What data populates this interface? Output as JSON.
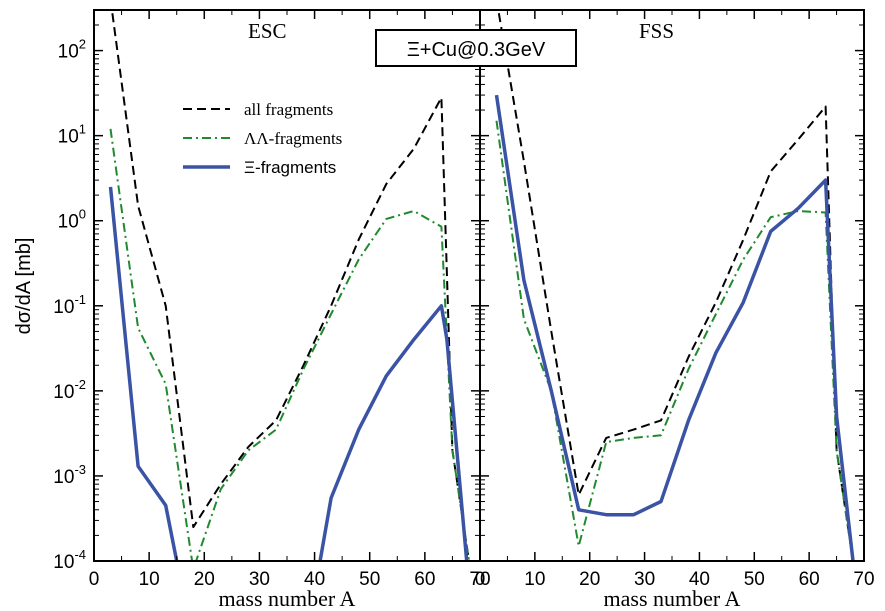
{
  "chart_data": {
    "type": "line",
    "ylabel": "dσ/dA [mb]",
    "ylog": true,
    "ylim": [
      0.0001,
      300
    ],
    "yticks": [
      {
        "value": 100,
        "base": "10",
        "exp": "2"
      },
      {
        "value": 10,
        "base": "10",
        "exp": "1"
      },
      {
        "value": 1,
        "base": "10",
        "exp": "0"
      },
      {
        "value": 0.1,
        "base": "10",
        "exp": "-1"
      },
      {
        "value": 0.01,
        "base": "10",
        "exp": "-2"
      },
      {
        "value": 0.001,
        "base": "10",
        "exp": "-3"
      },
      {
        "value": 0.0001,
        "base": "10",
        "exp": "-4"
      }
    ],
    "annotation": "Ξ+Cu@0.3GeV",
    "legend": {
      "placement": "top-left of left panel",
      "entries": [
        {
          "label": "all fragments",
          "style": "dashed",
          "color": "#000000"
        },
        {
          "label": "ΛΛ-fragments",
          "style": "dashdot",
          "color": "#1f8a2e"
        },
        {
          "label": "Ξ-fragments",
          "style": "solid",
          "color": "#3a53a4"
        }
      ]
    },
    "panels": [
      {
        "title": "ESC",
        "xlabel": "mass number A",
        "xlim": [
          0,
          70
        ],
        "xticks": [
          "0",
          "10",
          "20",
          "30",
          "40",
          "50",
          "60",
          "70"
        ],
        "series": [
          {
            "name": "all fragments",
            "x": [
              3,
              8,
              13,
              18,
              23,
              28,
              33,
              38,
              43,
              48,
              53,
              58,
              63,
              65,
              68
            ],
            "y": [
              400,
              1.5,
              0.1,
              0.00025,
              0.0008,
              0.0022,
              0.0045,
              0.02,
              0.1,
              0.6,
              2.7,
              7,
              28,
              0.002,
              0.0001
            ]
          },
          {
            "name": "ΛΛ-fragments",
            "x": [
              3,
              8,
              13,
              18,
              23,
              28,
              33,
              38,
              43,
              48,
              53,
              58,
              63,
              65,
              68
            ],
            "y": [
              12,
              0.055,
              0.012,
              8e-05,
              0.0007,
              0.002,
              0.0035,
              0.018,
              0.08,
              0.35,
              1.05,
              1.3,
              0.85,
              0.002,
              0.0001
            ]
          },
          {
            "name": "Ξ-fragments",
            "x": [
              3,
              8,
              13,
              15,
              18,
              38,
              41,
              43,
              48,
              53,
              58,
              63,
              64,
              68
            ],
            "y": [
              2.5,
              0.0013,
              0.00045,
              0.0001,
              2e-05,
              2e-05,
              0.0001,
              0.00055,
              0.0035,
              0.015,
              0.04,
              0.1,
              0.04,
              5e-05
            ]
          }
        ]
      },
      {
        "title": "FSS",
        "xlabel": "mass number A",
        "xlim": [
          0,
          70
        ],
        "xticks": [
          "0",
          "10",
          "20",
          "30",
          "40",
          "50",
          "60",
          "70"
        ],
        "series": [
          {
            "name": "all fragments",
            "x": [
              3,
              8,
              13,
              18,
              23,
              28,
              33,
              38,
              43,
              48,
              53,
              58,
              63,
              65,
              68
            ],
            "y": [
              400,
              5,
              0.05,
              0.0006,
              0.0028,
              0.0035,
              0.0045,
              0.025,
              0.11,
              0.6,
              3.8,
              9,
              22,
              0.002,
              0.0001
            ]
          },
          {
            "name": "ΛΛ-fragments",
            "x": [
              3,
              8,
              13,
              18,
              23,
              28,
              33,
              38,
              43,
              48,
              53,
              58,
              63,
              65,
              68
            ],
            "y": [
              15,
              0.07,
              0.01,
              0.00015,
              0.0025,
              0.0028,
              0.003,
              0.018,
              0.08,
              0.35,
              1.1,
              1.3,
              1.25,
              0.002,
              0.0001
            ]
          },
          {
            "name": "Ξ-fragments",
            "x": [
              3,
              8,
              13,
              18,
              23,
              28,
              33,
              38,
              43,
              48,
              53,
              58,
              63,
              65,
              68
            ],
            "y": [
              30,
              0.2,
              0.01,
              0.0004,
              0.00035,
              0.00035,
              0.0005,
              0.0045,
              0.028,
              0.11,
              0.75,
              1.4,
              3,
              0.005,
              0.0001
            ]
          }
        ]
      }
    ]
  }
}
